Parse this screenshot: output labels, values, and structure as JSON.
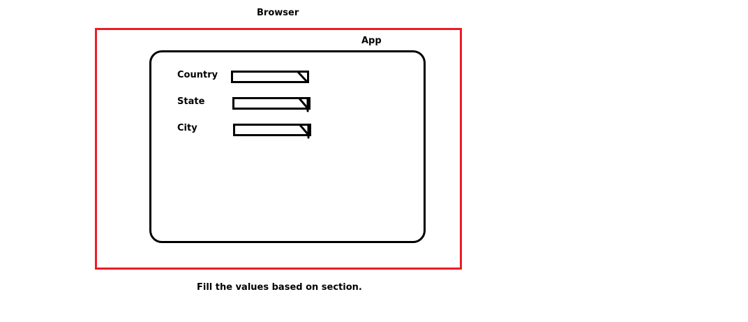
{
  "browser": {
    "title": "Browser",
    "frame_color": "#ed1c24"
  },
  "app": {
    "title": "App",
    "fields": [
      {
        "label": "Country",
        "control": "dropdown",
        "arrow_icon": "dropdown-arrow-icon"
      },
      {
        "label": "State",
        "control": "dropdown",
        "arrow_icon": "dropdown-arrow-icon"
      },
      {
        "label": "City",
        "control": "dropdown",
        "arrow_icon": "dropdown-arrow-icon"
      }
    ]
  },
  "caption": "Fill the values based on section."
}
